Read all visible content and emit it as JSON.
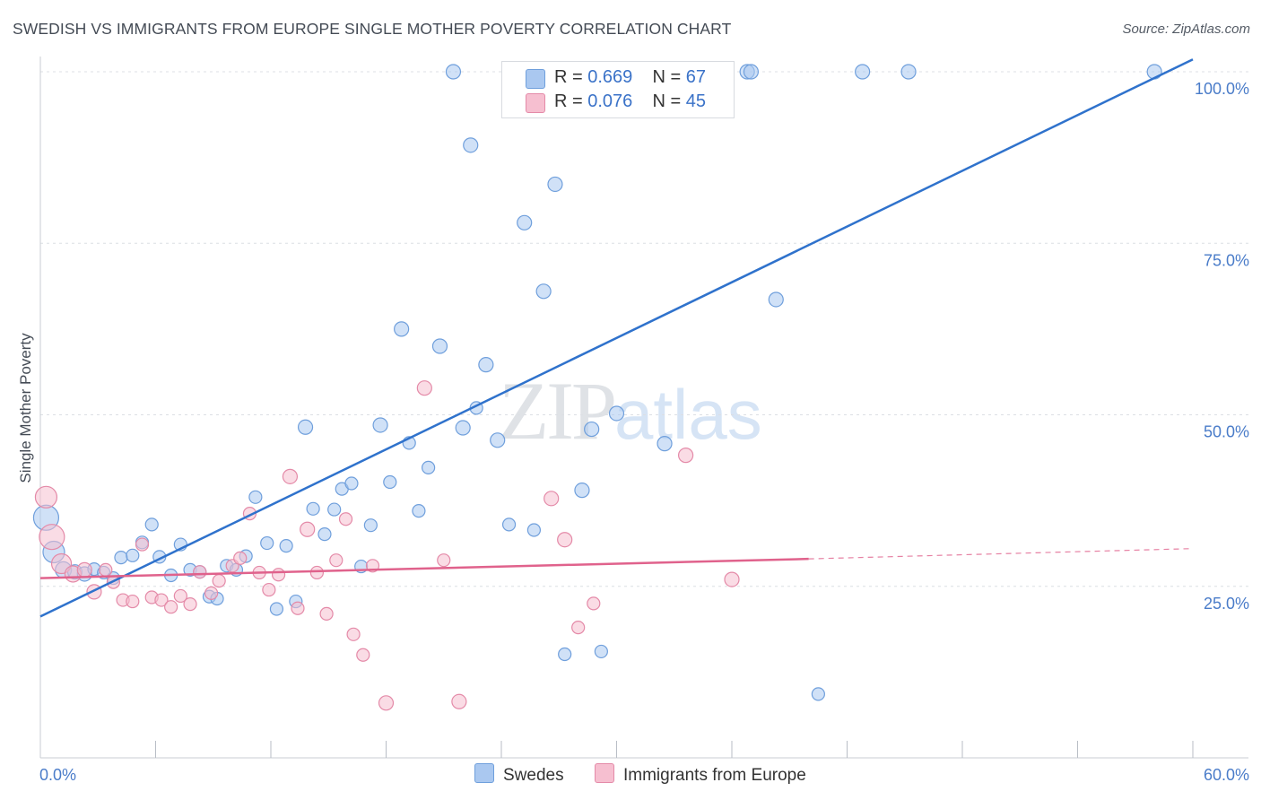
{
  "header": {
    "title": "SWEDISH VS IMMIGRANTS FROM EUROPE SINGLE MOTHER POVERTY CORRELATION CHART",
    "source": "Source: ZipAtlas.com"
  },
  "watermark": {
    "zip": "ZIP",
    "atlas": "atlas"
  },
  "colors": {
    "blue_fill": "#aac8f0",
    "blue_stroke": "#6f9fdc",
    "blue_line": "#2f72cc",
    "pink_fill": "#f6bfd0",
    "pink_stroke": "#e48aa8",
    "pink_line": "#e0628c",
    "grid": "#dcdfe4",
    "tick_text": "#4a7cc9"
  },
  "legend": {
    "rows": [
      {
        "r_label": "R = ",
        "r_value": "0.669",
        "n_label": "N = ",
        "n_value": "67"
      },
      {
        "r_label": "R = ",
        "r_value": "0.076",
        "n_label": "N = ",
        "n_value": "45"
      }
    ]
  },
  "chart_data": {
    "type": "scatter",
    "title": "SWEDISH VS IMMIGRANTS FROM EUROPE SINGLE MOTHER POVERTY CORRELATION CHART",
    "xlabel": "",
    "ylabel": "Single Mother Poverty",
    "xlim": [
      0,
      60
    ],
    "ylim": [
      0,
      104
    ],
    "x_tick_labels": [
      {
        "value": 0,
        "label": "0.0%"
      },
      {
        "value": 60,
        "label": "60.0%"
      }
    ],
    "y_tick_labels": [
      {
        "value": 25,
        "label": "25.0%"
      },
      {
        "value": 50,
        "label": "50.0%"
      },
      {
        "value": 75,
        "label": "75.0%"
      },
      {
        "value": 100,
        "label": "100.0%"
      }
    ],
    "x_minor_ticks": [
      6,
      12,
      18,
      24,
      30,
      36,
      42,
      48,
      54,
      60
    ],
    "grid": true,
    "legend_position": "top-center",
    "series": [
      {
        "name": "Swedes",
        "color": "#aac8f0",
        "trend": {
          "x": [
            0,
            60
          ],
          "y": [
            20.6,
            101.8
          ]
        },
        "points": [
          [
            0.3,
            35.0,
            14
          ],
          [
            0.7,
            30.0,
            12
          ],
          [
            1.2,
            27.4,
            9
          ],
          [
            1.8,
            27.1,
            8
          ],
          [
            2.3,
            26.8,
            8
          ],
          [
            2.8,
            27.5,
            7
          ],
          [
            3.3,
            27.0,
            7
          ],
          [
            3.8,
            26.2,
            7
          ],
          [
            4.2,
            29.2,
            7
          ],
          [
            4.8,
            29.5,
            7
          ],
          [
            5.3,
            31.4,
            7
          ],
          [
            5.8,
            34.0,
            7
          ],
          [
            6.2,
            29.3,
            7
          ],
          [
            6.8,
            26.6,
            7
          ],
          [
            7.3,
            31.1,
            7
          ],
          [
            7.8,
            27.4,
            7
          ],
          [
            8.3,
            27.1,
            7
          ],
          [
            8.8,
            23.5,
            7
          ],
          [
            9.2,
            23.2,
            7
          ],
          [
            9.7,
            28.0,
            7
          ],
          [
            10.2,
            27.4,
            7
          ],
          [
            10.7,
            29.4,
            7
          ],
          [
            11.2,
            38.0,
            7
          ],
          [
            11.8,
            31.3,
            7
          ],
          [
            12.3,
            21.7,
            7
          ],
          [
            12.8,
            30.9,
            7
          ],
          [
            13.3,
            22.8,
            7
          ],
          [
            13.8,
            48.2,
            8
          ],
          [
            14.2,
            36.3,
            7
          ],
          [
            14.8,
            32.6,
            7
          ],
          [
            15.3,
            36.2,
            7
          ],
          [
            15.7,
            39.2,
            7
          ],
          [
            16.2,
            40.0,
            7
          ],
          [
            16.7,
            27.9,
            7
          ],
          [
            17.2,
            33.9,
            7
          ],
          [
            17.7,
            48.5,
            8
          ],
          [
            18.2,
            40.2,
            7
          ],
          [
            18.8,
            62.5,
            8
          ],
          [
            19.2,
            45.9,
            7
          ],
          [
            19.7,
            36.0,
            7
          ],
          [
            20.2,
            42.3,
            7
          ],
          [
            20.8,
            60.0,
            8
          ],
          [
            21.5,
            100.0,
            8
          ],
          [
            22.0,
            48.1,
            8
          ],
          [
            22.4,
            89.3,
            8
          ],
          [
            22.7,
            51.0,
            7
          ],
          [
            23.2,
            57.3,
            8
          ],
          [
            23.8,
            46.3,
            8
          ],
          [
            24.4,
            34.0,
            7
          ],
          [
            25.2,
            78.0,
            8
          ],
          [
            25.7,
            33.2,
            7
          ],
          [
            26.2,
            68.0,
            8
          ],
          [
            26.8,
            83.6,
            8
          ],
          [
            27.3,
            15.1,
            7
          ],
          [
            28.2,
            39.0,
            8
          ],
          [
            28.7,
            47.9,
            8
          ],
          [
            29.2,
            15.5,
            7
          ],
          [
            30.0,
            50.2,
            8
          ],
          [
            31.3,
            100.0,
            8
          ],
          [
            32.5,
            45.8,
            8
          ],
          [
            36.8,
            100.0,
            8
          ],
          [
            37.0,
            100.0,
            8
          ],
          [
            38.3,
            66.8,
            8
          ],
          [
            40.5,
            9.3,
            7
          ],
          [
            42.8,
            100.0,
            8
          ],
          [
            45.2,
            100.0,
            8
          ],
          [
            58.0,
            100.0,
            8
          ]
        ]
      },
      {
        "name": "Immigrants from Europe",
        "color": "#f6bfd0",
        "trend": {
          "x": [
            0,
            40
          ],
          "y": [
            26.2,
            29.0
          ]
        },
        "trend_dashed": {
          "x": [
            40,
            60
          ],
          "y": [
            29.0,
            30.5
          ]
        },
        "points": [
          [
            0.3,
            38.0,
            12
          ],
          [
            0.6,
            32.2,
            14
          ],
          [
            1.1,
            28.3,
            11
          ],
          [
            1.7,
            26.8,
            9
          ],
          [
            2.3,
            27.4,
            8
          ],
          [
            2.8,
            24.2,
            8
          ],
          [
            3.4,
            27.4,
            7
          ],
          [
            3.8,
            25.6,
            7
          ],
          [
            4.3,
            23.0,
            7
          ],
          [
            4.8,
            22.8,
            7
          ],
          [
            5.3,
            31.1,
            7
          ],
          [
            5.8,
            23.4,
            7
          ],
          [
            6.3,
            23.0,
            7
          ],
          [
            6.8,
            22.0,
            7
          ],
          [
            7.3,
            23.6,
            7
          ],
          [
            7.8,
            22.4,
            7
          ],
          [
            8.3,
            27.1,
            7
          ],
          [
            8.9,
            24.0,
            7
          ],
          [
            9.3,
            25.8,
            7
          ],
          [
            10.0,
            28.0,
            7
          ],
          [
            10.4,
            29.1,
            7
          ],
          [
            10.9,
            35.6,
            7
          ],
          [
            11.4,
            27.0,
            7
          ],
          [
            11.9,
            24.5,
            7
          ],
          [
            12.4,
            26.7,
            7
          ],
          [
            13.0,
            41.0,
            8
          ],
          [
            13.4,
            21.8,
            7
          ],
          [
            13.9,
            33.3,
            8
          ],
          [
            14.4,
            27.0,
            7
          ],
          [
            14.9,
            21.0,
            7
          ],
          [
            15.4,
            28.8,
            7
          ],
          [
            15.9,
            34.8,
            7
          ],
          [
            16.3,
            18.0,
            7
          ],
          [
            16.8,
            15.0,
            7
          ],
          [
            17.3,
            28.0,
            7
          ],
          [
            18.0,
            8.0,
            8
          ],
          [
            20.0,
            53.9,
            8
          ],
          [
            21.0,
            28.8,
            7
          ],
          [
            21.8,
            8.2,
            8
          ],
          [
            26.6,
            37.8,
            8
          ],
          [
            27.3,
            31.8,
            8
          ],
          [
            28.0,
            19.0,
            7
          ],
          [
            28.8,
            22.5,
            7
          ],
          [
            33.6,
            44.1,
            8
          ],
          [
            36.0,
            26.0,
            8
          ]
        ]
      }
    ]
  },
  "bottom_legend": [
    {
      "label": "Swedes"
    },
    {
      "label": "Immigrants from Europe"
    }
  ]
}
